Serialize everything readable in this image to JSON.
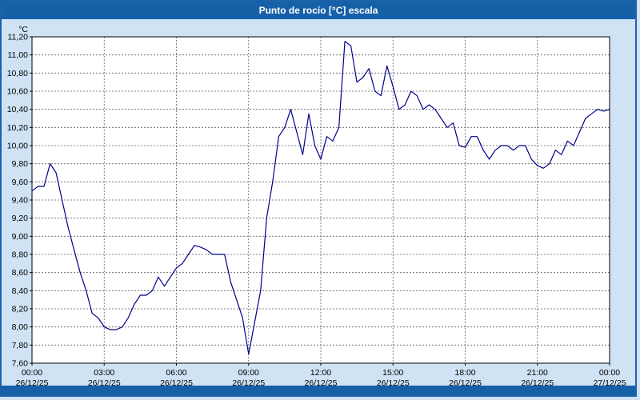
{
  "title": "Punto de rocío [°C] escala",
  "chart_data": {
    "type": "line",
    "title": "Punto de rocío [°C] escala",
    "xlabel": "",
    "ylabel": "°C",
    "ylim": [
      7.6,
      11.2
    ],
    "ytick_step": 0.2,
    "ytick_labels": [
      "7,60",
      "7,80",
      "8,00",
      "8,20",
      "8,40",
      "8,60",
      "8,80",
      "9,00",
      "9,20",
      "9,40",
      "9,60",
      "9,80",
      "10,00",
      "10,20",
      "10,40",
      "10,60",
      "10,80",
      "11,00",
      "11,20"
    ],
    "xlim_hours": [
      0,
      24
    ],
    "xtick_step_hours": 3,
    "xticks": [
      {
        "time": "00:00",
        "date": "26/12/25"
      },
      {
        "time": "03:00",
        "date": "26/12/25"
      },
      {
        "time": "06:00",
        "date": "26/12/25"
      },
      {
        "time": "09:00",
        "date": "26/12/25"
      },
      {
        "time": "12:00",
        "date": "26/12/25"
      },
      {
        "time": "15:00",
        "date": "26/12/25"
      },
      {
        "time": "18:00",
        "date": "26/12/25"
      },
      {
        "time": "21:00",
        "date": "26/12/25"
      },
      {
        "time": "00:00",
        "date": "27/12/25"
      }
    ],
    "grid": true,
    "legend": "none",
    "colors": {
      "line": "#00008b",
      "titlebar": "#1660a8",
      "background": "#cfe3f5",
      "plot_background": "#ffffff",
      "gridline": "#606060"
    },
    "series": [
      {
        "name": "Punto de rocío",
        "color": "#00008b",
        "x": [
          0,
          0.25,
          0.5,
          0.75,
          1,
          1.25,
          1.5,
          1.75,
          2,
          2.25,
          2.5,
          2.75,
          3,
          3.25,
          3.5,
          3.75,
          4,
          4.25,
          4.5,
          4.75,
          5,
          5.25,
          5.5,
          5.75,
          6,
          6.25,
          6.5,
          6.75,
          7,
          7.25,
          7.5,
          7.75,
          8,
          8.25,
          8.5,
          8.75,
          9,
          9.25,
          9.5,
          9.75,
          10,
          10.25,
          10.5,
          10.75,
          11,
          11.25,
          11.5,
          11.75,
          12,
          12.25,
          12.5,
          12.75,
          13,
          13.25,
          13.5,
          13.75,
          14,
          14.25,
          14.5,
          14.75,
          15,
          15.25,
          15.5,
          15.75,
          16,
          16.25,
          16.5,
          16.75,
          17,
          17.25,
          17.5,
          17.75,
          18,
          18.25,
          18.5,
          18.75,
          19,
          19.25,
          19.5,
          19.75,
          20,
          20.25,
          20.5,
          20.75,
          21,
          21.25,
          21.5,
          21.75,
          22,
          22.25,
          22.5,
          22.75,
          23,
          23.25,
          23.5,
          23.75,
          24
        ],
        "y": [
          9.5,
          9.55,
          9.55,
          9.8,
          9.7,
          9.4,
          9.1,
          8.85,
          8.6,
          8.4,
          8.15,
          8.1,
          8.0,
          7.97,
          7.97,
          8.0,
          8.1,
          8.25,
          8.35,
          8.35,
          8.4,
          8.55,
          8.45,
          8.55,
          8.65,
          8.7,
          8.8,
          8.9,
          8.88,
          8.85,
          8.8,
          8.8,
          8.8,
          8.5,
          8.3,
          8.1,
          7.7,
          8.05,
          8.4,
          9.2,
          9.6,
          10.1,
          10.2,
          10.4,
          10.15,
          9.9,
          10.35,
          10.0,
          9.85,
          10.1,
          10.05,
          10.2,
          11.15,
          11.1,
          10.7,
          10.75,
          10.85,
          10.6,
          10.55,
          10.88,
          10.65,
          10.4,
          10.45,
          10.6,
          10.55,
          10.4,
          10.45,
          10.4,
          10.3,
          10.2,
          10.25,
          10.0,
          9.98,
          10.1,
          10.1,
          9.95,
          9.85,
          9.95,
          10.0,
          10.0,
          9.95,
          10.0,
          10.0,
          9.85,
          9.78,
          9.75,
          9.8,
          9.95,
          9.9,
          10.05,
          10.0,
          10.15,
          10.3,
          10.35,
          10.4,
          10.38,
          10.4
        ]
      }
    ]
  }
}
